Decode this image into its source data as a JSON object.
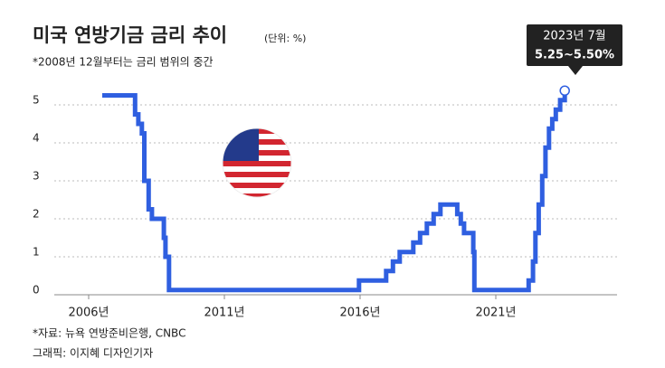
{
  "chart_data": {
    "type": "line",
    "title": "미국 연방기금 금리 추이",
    "unit": "(단위: %)",
    "subtitle": "*2008년 12월부터는 금리 범위의 중간",
    "source": "*자료: 뉴욕 연방준비은행, CNBC",
    "credit": "그래픽: 이지혜 디자인기자",
    "annotation": {
      "date": "2023년 7월",
      "value": "5.25~5.50%"
    },
    "step": true,
    "grid": true,
    "xlim": [
      2005,
      2024.5
    ],
    "ylim": [
      0,
      5.5
    ],
    "xticks": [
      {
        "value": 2006,
        "label": "2006년"
      },
      {
        "value": 2011,
        "label": "2011년"
      },
      {
        "value": 2016,
        "label": "2016년"
      },
      {
        "value": 2021,
        "label": "2021년"
      }
    ],
    "yticks": [
      0,
      1,
      2,
      3,
      4,
      5
    ],
    "series": [
      {
        "color": "#2f5fe0",
        "x": [
          2006.5,
          2007.71,
          2007.83,
          2007.96,
          2008.05,
          2008.21,
          2008.33,
          2008.77,
          2008.83,
          2008.96,
          2015.96,
          2016.96,
          2017.21,
          2017.46,
          2017.96,
          2018.21,
          2018.46,
          2018.71,
          2018.96,
          2019.58,
          2019.71,
          2019.83,
          2020.17,
          2020.21,
          2022.21,
          2022.37,
          2022.46,
          2022.58,
          2022.71,
          2022.83,
          2022.96,
          2023.08,
          2023.21,
          2023.37,
          2023.54
        ],
        "values": [
          5.25,
          4.75,
          4.5,
          4.25,
          3.0,
          2.25,
          2.0,
          1.5,
          1.0,
          0.125,
          0.375,
          0.625,
          0.875,
          1.125,
          1.375,
          1.625,
          1.875,
          2.125,
          2.375,
          2.125,
          1.875,
          1.625,
          1.125,
          0.125,
          0.375,
          0.875,
          1.625,
          2.375,
          3.125,
          3.875,
          4.375,
          4.625,
          4.875,
          5.125,
          5.375
        ]
      }
    ]
  }
}
